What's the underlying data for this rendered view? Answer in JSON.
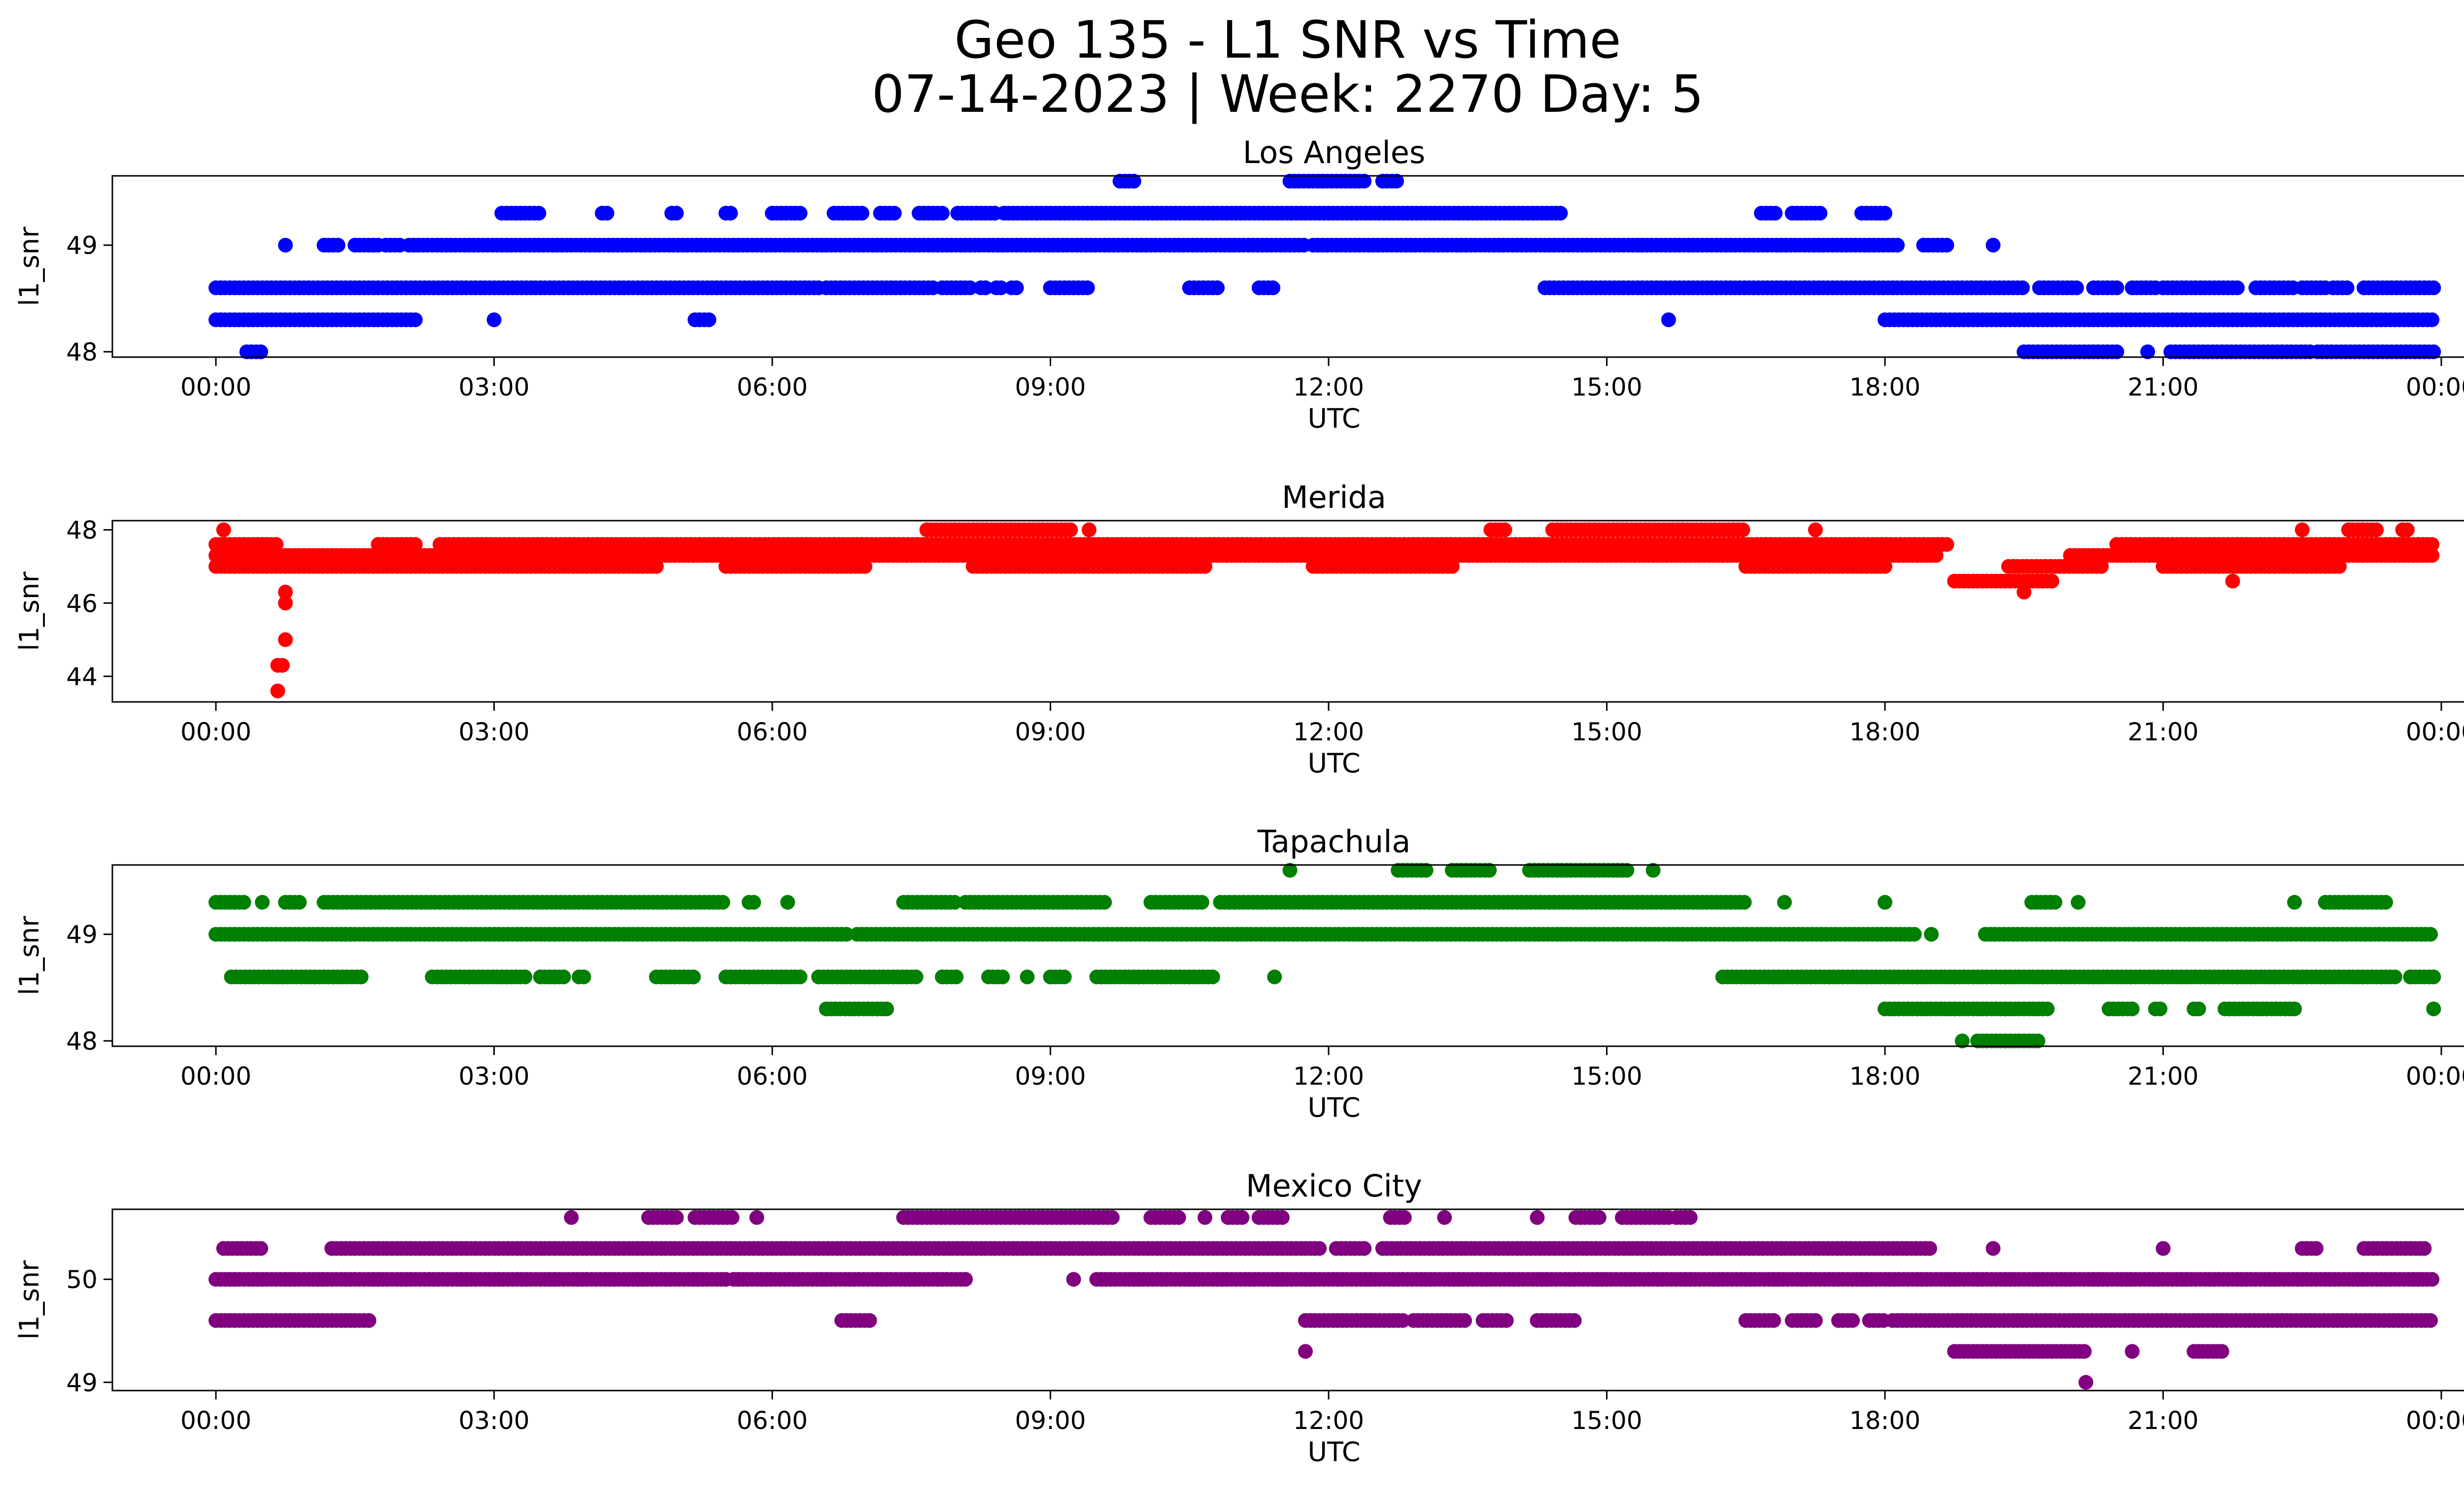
{
  "figure": {
    "title_line1": "Geo 135 - L1 SNR vs Time",
    "title_line2": "07-14-2023 | Week: 2270 Day: 5"
  },
  "chart_data": [
    {
      "type": "scatter",
      "title": "Los Angeles",
      "xlabel": "UTC",
      "ylabel": "l1_snr",
      "color": "#0000ff",
      "xlim": [
        "2023-07-13T22:53",
        "2023-07-15T01:14"
      ],
      "ylim": [
        47.95,
        49.65
      ],
      "xticks": [
        "00:00",
        "03:00",
        "06:00",
        "09:00",
        "12:00",
        "15:00",
        "18:00",
        "21:00",
        "00:00"
      ],
      "yticks": [
        48,
        49
      ],
      "grid": false,
      "levels": [
        {
          "y": 49.6,
          "segments": [
            [
              "09:45",
              "09:55"
            ],
            [
              "11:35",
              "12:25"
            ],
            [
              "12:35",
              "12:45"
            ]
          ]
        },
        {
          "y": 49.3,
          "segments": [
            [
              "03:05",
              "03:30"
            ],
            [
              "04:10",
              "04:15"
            ],
            [
              "04:55",
              "05:00"
            ],
            [
              "05:30",
              "05:35"
            ],
            [
              "06:00",
              "06:20"
            ],
            [
              "06:40",
              "07:00"
            ],
            [
              "07:10",
              "07:20"
            ],
            [
              "07:35",
              "07:50"
            ],
            [
              "08:00",
              "08:25"
            ],
            [
              "08:30",
              "14:30"
            ],
            [
              "16:40",
              "16:50"
            ],
            [
              "17:00",
              "17:20"
            ],
            [
              "17:45",
              "18:00"
            ]
          ]
        },
        {
          "y": 49.0,
          "segments": [
            [
              "00:45",
              "00:45"
            ],
            [
              "01:10",
              "01:20"
            ],
            [
              "01:30",
              "01:45"
            ],
            [
              "01:50",
              "02:00"
            ],
            [
              "02:05",
              "11:45"
            ],
            [
              "11:50",
              "18:10"
            ],
            [
              "18:25",
              "18:40"
            ],
            [
              "19:10",
              "19:10"
            ]
          ]
        },
        {
          "y": 48.6,
          "segments": [
            [
              "00:00",
              "06:30"
            ],
            [
              "06:35",
              "07:45"
            ],
            [
              "07:50",
              "08:10"
            ],
            [
              "08:15",
              "08:20"
            ],
            [
              "08:25",
              "08:30"
            ],
            [
              "08:35",
              "08:40"
            ],
            [
              "09:00",
              "09:25"
            ],
            [
              "10:30",
              "10:50"
            ],
            [
              "11:15",
              "11:25"
            ],
            [
              "14:20",
              "19:30"
            ],
            [
              "19:40",
              "20:05"
            ],
            [
              "20:15",
              "20:30"
            ],
            [
              "20:40",
              "20:55"
            ],
            [
              "21:00",
              "21:50"
            ],
            [
              "22:00",
              "22:25"
            ],
            [
              "22:30",
              "22:45"
            ],
            [
              "22:50",
              "23:00"
            ],
            [
              "23:10",
              "23:55"
            ]
          ]
        },
        {
          "y": 48.3,
          "segments": [
            [
              "00:00",
              "02:10"
            ],
            [
              "03:00",
              "03:00"
            ],
            [
              "05:10",
              "05:20"
            ],
            [
              "15:40",
              "15:40"
            ],
            [
              "18:00",
              "23:55"
            ]
          ]
        },
        {
          "y": 48.0,
          "segments": [
            [
              "00:20",
              "00:30"
            ],
            [
              "19:30",
              "20:30"
            ],
            [
              "20:50",
              "20:50"
            ],
            [
              "21:05",
              "22:35"
            ],
            [
              "22:40",
              "23:55"
            ]
          ]
        }
      ]
    },
    {
      "type": "scatter",
      "title": "Merida",
      "xlabel": "UTC",
      "ylabel": "l1_snr",
      "color": "#ff0000",
      "xlim": [
        "2023-07-13T22:53",
        "2023-07-15T01:14"
      ],
      "ylim": [
        43.3,
        48.25
      ],
      "xticks": [
        "00:00",
        "03:00",
        "06:00",
        "09:00",
        "12:00",
        "15:00",
        "18:00",
        "21:00",
        "00:00"
      ],
      "yticks": [
        44,
        46,
        48
      ],
      "grid": false,
      "levels": [
        {
          "y": 48.0,
          "segments": [
            [
              "00:05",
              "00:05"
            ],
            [
              "07:40",
              "09:15"
            ],
            [
              "09:25",
              "09:25"
            ],
            [
              "13:45",
              "13:55"
            ],
            [
              "14:25",
              "16:30"
            ],
            [
              "17:15",
              "17:15"
            ],
            [
              "22:30",
              "22:30"
            ],
            [
              "23:00",
              "23:20"
            ],
            [
              "23:35",
              "23:40"
            ]
          ]
        },
        {
          "y": 47.6,
          "segments": [
            [
              "00:00",
              "00:40"
            ],
            [
              "01:45",
              "02:10"
            ],
            [
              "02:25",
              "18:40"
            ],
            [
              "20:30",
              "23:55"
            ]
          ]
        },
        {
          "y": 47.3,
          "segments": [
            [
              "00:00",
              "18:35"
            ],
            [
              "20:00",
              "23:55"
            ]
          ]
        },
        {
          "y": 47.0,
          "segments": [
            [
              "00:00",
              "04:45"
            ],
            [
              "05:30",
              "07:00"
            ],
            [
              "08:10",
              "10:40"
            ],
            [
              "11:50",
              "13:20"
            ],
            [
              "16:30",
              "18:00"
            ],
            [
              "19:20",
              "20:20"
            ],
            [
              "21:00",
              "22:55"
            ]
          ]
        },
        {
          "y": 46.6,
          "segments": [
            [
              "18:45",
              "19:50"
            ],
            [
              "21:45",
              "21:45"
            ]
          ]
        },
        {
          "y": 46.3,
          "segments": [
            [
              "00:45",
              "00:45"
            ],
            [
              "19:30",
              "19:30"
            ]
          ]
        },
        {
          "y": 46.0,
          "segments": [
            [
              "00:45",
              "00:45"
            ]
          ]
        },
        {
          "y": 45.0,
          "segments": [
            [
              "00:45",
              "00:45"
            ]
          ]
        },
        {
          "y": 44.3,
          "segments": [
            [
              "00:40",
              "00:45"
            ]
          ]
        },
        {
          "y": 43.6,
          "segments": [
            [
              "00:40",
              "00:40"
            ]
          ]
        }
      ]
    },
    {
      "type": "scatter",
      "title": "Tapachula",
      "xlabel": "UTC",
      "ylabel": "l1_snr",
      "color": "#008000",
      "xlim": [
        "2023-07-13T22:53",
        "2023-07-15T01:14"
      ],
      "ylim": [
        47.95,
        49.65
      ],
      "xticks": [
        "00:00",
        "03:00",
        "06:00",
        "09:00",
        "12:00",
        "15:00",
        "18:00",
        "21:00",
        "00:00"
      ],
      "yticks": [
        48,
        49
      ],
      "grid": false,
      "levels": [
        {
          "y": 49.6,
          "segments": [
            [
              "11:35",
              "11:35"
            ],
            [
              "12:45",
              "13:05"
            ],
            [
              "13:20",
              "13:45"
            ],
            [
              "14:10",
              "15:15"
            ],
            [
              "15:30",
              "15:30"
            ]
          ]
        },
        {
          "y": 49.3,
          "segments": [
            [
              "00:00",
              "00:20"
            ],
            [
              "00:30",
              "00:30"
            ],
            [
              "00:45",
              "00:55"
            ],
            [
              "01:10",
              "05:30"
            ],
            [
              "05:45",
              "05:50"
            ],
            [
              "06:10",
              "06:10"
            ],
            [
              "07:25",
              "08:00"
            ],
            [
              "08:05",
              "09:35"
            ],
            [
              "10:05",
              "10:40"
            ],
            [
              "10:50",
              "16:30"
            ],
            [
              "16:55",
              "16:55"
            ],
            [
              "18:00",
              "18:00"
            ],
            [
              "19:35",
              "19:50"
            ],
            [
              "20:05",
              "20:05"
            ],
            [
              "22:25",
              "22:25"
            ],
            [
              "22:45",
              "23:25"
            ]
          ]
        },
        {
          "y": 49.0,
          "segments": [
            [
              "00:00",
              "06:50"
            ],
            [
              "06:55",
              "18:20"
            ],
            [
              "18:30",
              "18:30"
            ],
            [
              "19:05",
              "23:55"
            ]
          ]
        },
        {
          "y": 48.6,
          "segments": [
            [
              "00:10",
              "01:35"
            ],
            [
              "02:20",
              "03:20"
            ],
            [
              "03:30",
              "03:45"
            ],
            [
              "03:55",
              "04:00"
            ],
            [
              "04:45",
              "05:10"
            ],
            [
              "05:30",
              "06:20"
            ],
            [
              "06:30",
              "07:35"
            ],
            [
              "07:50",
              "08:00"
            ],
            [
              "08:20",
              "08:30"
            ],
            [
              "08:45",
              "08:45"
            ],
            [
              "09:00",
              "09:10"
            ],
            [
              "09:30",
              "10:45"
            ],
            [
              "11:25",
              "11:25"
            ],
            [
              "16:15",
              "23:30"
            ],
            [
              "23:40",
              "23:55"
            ]
          ]
        },
        {
          "y": 48.3,
          "segments": [
            [
              "06:35",
              "07:15"
            ],
            [
              "18:00",
              "19:45"
            ],
            [
              "20:25",
              "20:40"
            ],
            [
              "20:55",
              "21:00"
            ],
            [
              "21:20",
              "21:25"
            ],
            [
              "21:40",
              "22:25"
            ],
            [
              "23:55",
              "23:55"
            ]
          ]
        },
        {
          "y": 48.0,
          "segments": [
            [
              "18:50",
              "18:50"
            ],
            [
              "19:00",
              "19:40"
            ]
          ]
        }
      ]
    },
    {
      "type": "scatter",
      "title": "Mexico City",
      "xlabel": "UTC",
      "ylabel": "l1_snr",
      "color": "#800080",
      "xlim": [
        "2023-07-13T22:53",
        "2023-07-15T01:14"
      ],
      "ylim": [
        48.92,
        50.68
      ],
      "xticks": [
        "00:00",
        "03:00",
        "06:00",
        "09:00",
        "12:00",
        "15:00",
        "18:00",
        "21:00",
        "00:00"
      ],
      "yticks": [
        49,
        50
      ],
      "grid": false,
      "levels": [
        {
          "y": 50.6,
          "segments": [
            [
              "03:50",
              "03:50"
            ],
            [
              "04:40",
              "05:00"
            ],
            [
              "05:10",
              "05:35"
            ],
            [
              "05:50",
              "05:50"
            ],
            [
              "07:25",
              "09:40"
            ],
            [
              "10:05",
              "10:25"
            ],
            [
              "10:40",
              "10:40"
            ],
            [
              "10:55",
              "11:05"
            ],
            [
              "11:15",
              "11:30"
            ],
            [
              "12:40",
              "12:50"
            ],
            [
              "13:15",
              "13:15"
            ],
            [
              "14:15",
              "14:15"
            ],
            [
              "14:40",
              "14:55"
            ],
            [
              "15:10",
              "15:40"
            ],
            [
              "15:45",
              "15:55"
            ]
          ]
        },
        {
          "y": 50.3,
          "segments": [
            [
              "00:05",
              "00:30"
            ],
            [
              "01:15",
              "11:55"
            ],
            [
              "12:05",
              "12:25"
            ],
            [
              "12:35",
              "18:30"
            ],
            [
              "19:10",
              "19:10"
            ],
            [
              "21:00",
              "21:00"
            ],
            [
              "22:30",
              "22:40"
            ],
            [
              "23:10",
              "23:50"
            ]
          ]
        },
        {
          "y": 50.0,
          "segments": [
            [
              "00:00",
              "05:30"
            ],
            [
              "05:35",
              "08:05"
            ],
            [
              "09:15",
              "09:15"
            ],
            [
              "09:30",
              "23:55"
            ]
          ]
        },
        {
          "y": 49.6,
          "segments": [
            [
              "00:00",
              "01:40"
            ],
            [
              "06:45",
              "07:05"
            ],
            [
              "11:45",
              "12:50"
            ],
            [
              "12:55",
              "13:30"
            ],
            [
              "13:40",
              "13:55"
            ],
            [
              "14:15",
              "14:40"
            ],
            [
              "16:30",
              "16:50"
            ],
            [
              "17:00",
              "17:15"
            ],
            [
              "17:30",
              "17:40"
            ],
            [
              "17:50",
              "18:00"
            ],
            [
              "18:05",
              "23:55"
            ]
          ]
        },
        {
          "y": 49.3,
          "segments": [
            [
              "11:45",
              "11:45"
            ],
            [
              "18:45",
              "20:10"
            ],
            [
              "20:40",
              "20:40"
            ],
            [
              "21:20",
              "21:40"
            ]
          ]
        },
        {
          "y": 49.0,
          "segments": [
            [
              "20:10",
              "20:10"
            ]
          ]
        }
      ]
    }
  ]
}
